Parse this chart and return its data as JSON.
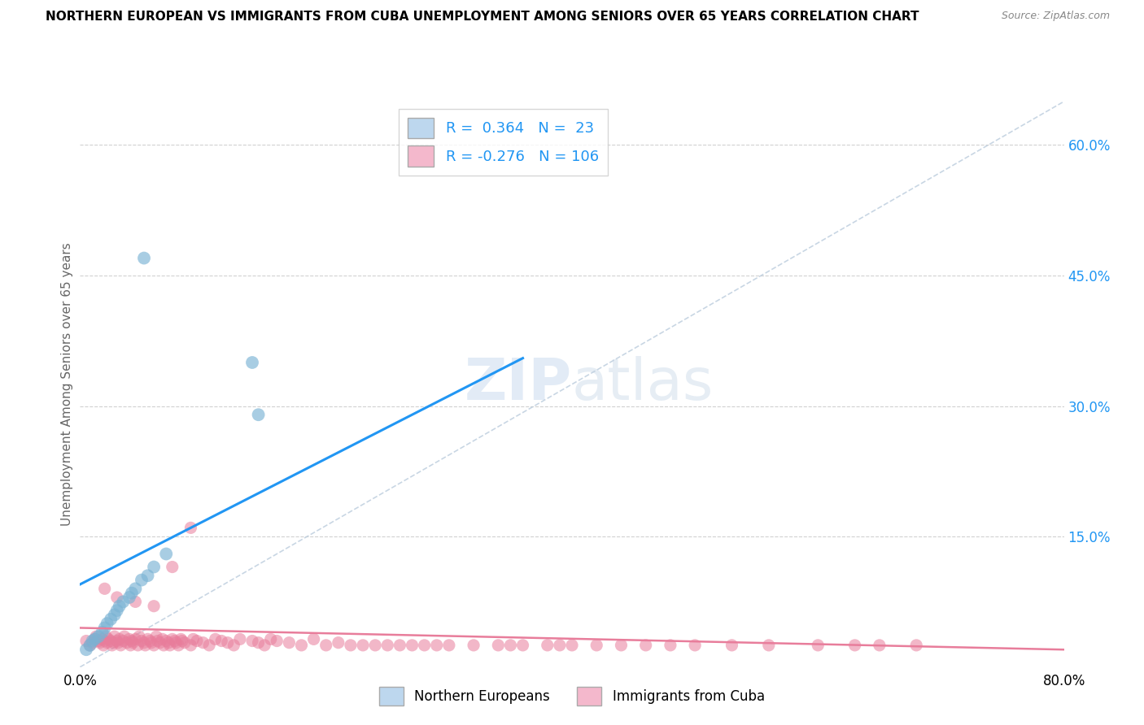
{
  "title": "NORTHERN EUROPEAN VS IMMIGRANTS FROM CUBA UNEMPLOYMENT AMONG SENIORS OVER 65 YEARS CORRELATION CHART",
  "source": "Source: ZipAtlas.com",
  "ylabel": "Unemployment Among Seniors over 65 years",
  "xlim": [
    0.0,
    0.8
  ],
  "ylim": [
    0.0,
    0.65
  ],
  "R_blue": 0.364,
  "N_blue": 23,
  "R_pink": -0.276,
  "N_pink": 106,
  "blue_color": "#7ab3d4",
  "blue_fill": "#bdd7ee",
  "pink_color": "#e87d9b",
  "pink_fill": "#f4b8cc",
  "blue_x": [
    0.005,
    0.008,
    0.01,
    0.012,
    0.015,
    0.018,
    0.02,
    0.022,
    0.025,
    0.028,
    0.03,
    0.032,
    0.035,
    0.04,
    0.042,
    0.045,
    0.05,
    0.055,
    0.06,
    0.07,
    0.052,
    0.14,
    0.145
  ],
  "blue_y": [
    0.02,
    0.025,
    0.03,
    0.032,
    0.035,
    0.04,
    0.045,
    0.05,
    0.055,
    0.06,
    0.065,
    0.07,
    0.075,
    0.08,
    0.085,
    0.09,
    0.1,
    0.105,
    0.115,
    0.13,
    0.47,
    0.35,
    0.29
  ],
  "pink_x": [
    0.005,
    0.008,
    0.01,
    0.012,
    0.013,
    0.015,
    0.016,
    0.018,
    0.019,
    0.02,
    0.021,
    0.022,
    0.023,
    0.025,
    0.026,
    0.027,
    0.028,
    0.03,
    0.031,
    0.032,
    0.033,
    0.035,
    0.036,
    0.038,
    0.04,
    0.041,
    0.042,
    0.043,
    0.045,
    0.047,
    0.048,
    0.05,
    0.052,
    0.053,
    0.055,
    0.057,
    0.058,
    0.06,
    0.062,
    0.063,
    0.065,
    0.067,
    0.068,
    0.07,
    0.072,
    0.073,
    0.075,
    0.077,
    0.078,
    0.08,
    0.082,
    0.083,
    0.085,
    0.09,
    0.092,
    0.095,
    0.1,
    0.105,
    0.11,
    0.115,
    0.12,
    0.125,
    0.13,
    0.14,
    0.145,
    0.15,
    0.155,
    0.16,
    0.17,
    0.18,
    0.19,
    0.2,
    0.21,
    0.22,
    0.23,
    0.24,
    0.25,
    0.26,
    0.27,
    0.28,
    0.29,
    0.3,
    0.32,
    0.34,
    0.35,
    0.36,
    0.38,
    0.39,
    0.4,
    0.42,
    0.44,
    0.46,
    0.48,
    0.5,
    0.53,
    0.56,
    0.6,
    0.63,
    0.65,
    0.68,
    0.02,
    0.03,
    0.045,
    0.06,
    0.075,
    0.09
  ],
  "pink_y": [
    0.03,
    0.025,
    0.028,
    0.032,
    0.035,
    0.03,
    0.028,
    0.032,
    0.025,
    0.03,
    0.035,
    0.028,
    0.032,
    0.03,
    0.025,
    0.028,
    0.035,
    0.03,
    0.028,
    0.032,
    0.025,
    0.03,
    0.035,
    0.028,
    0.032,
    0.025,
    0.03,
    0.028,
    0.032,
    0.025,
    0.035,
    0.03,
    0.028,
    0.025,
    0.032,
    0.03,
    0.028,
    0.025,
    0.035,
    0.03,
    0.028,
    0.032,
    0.025,
    0.03,
    0.028,
    0.025,
    0.032,
    0.03,
    0.028,
    0.025,
    0.032,
    0.03,
    0.028,
    0.025,
    0.032,
    0.03,
    0.028,
    0.025,
    0.032,
    0.03,
    0.028,
    0.025,
    0.032,
    0.03,
    0.028,
    0.025,
    0.032,
    0.03,
    0.028,
    0.025,
    0.032,
    0.025,
    0.028,
    0.025,
    0.025,
    0.025,
    0.025,
    0.025,
    0.025,
    0.025,
    0.025,
    0.025,
    0.025,
    0.025,
    0.025,
    0.025,
    0.025,
    0.025,
    0.025,
    0.025,
    0.025,
    0.025,
    0.025,
    0.025,
    0.025,
    0.025,
    0.025,
    0.025,
    0.025,
    0.025,
    0.09,
    0.08,
    0.075,
    0.07,
    0.115,
    0.16
  ],
  "blue_line": [
    0.0,
    0.36
  ],
  "blue_line_y": [
    0.095,
    0.355
  ],
  "pink_line": [
    0.0,
    0.8
  ],
  "pink_line_y": [
    0.045,
    0.02
  ],
  "diag_line_x": [
    0.0,
    0.8
  ],
  "diag_line_y": [
    0.0,
    0.65
  ],
  "watermark_zip": "ZIP",
  "watermark_atlas": "atlas",
  "background_color": "#ffffff",
  "grid_color": "#cccccc"
}
